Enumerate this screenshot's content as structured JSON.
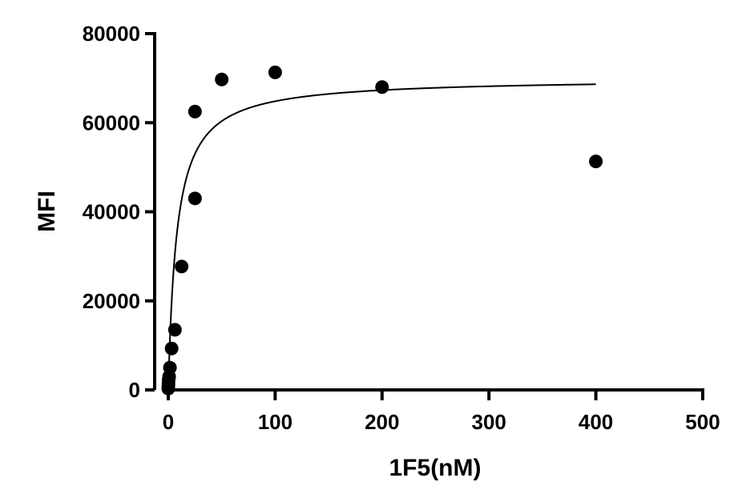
{
  "chart_data": {
    "type": "scatter",
    "xlabel": "1F5(nM)",
    "ylabel": "MFI",
    "xlim": [
      0,
      500
    ],
    "ylim": [
      0,
      80000
    ],
    "x_ticks": [
      0,
      100,
      200,
      300,
      400,
      500
    ],
    "y_ticks": [
      0,
      20000,
      40000,
      60000,
      80000
    ],
    "x_tick_labels": [
      "0",
      "100",
      "200",
      "300",
      "400",
      "500"
    ],
    "y_tick_labels": [
      "0",
      "20000",
      "40000",
      "60000",
      "80000"
    ],
    "grid": false,
    "legend": "none",
    "series": [
      {
        "type": "scatter",
        "points": [
          {
            "x": 0.05,
            "y": 300
          },
          {
            "x": 0.1,
            "y": 800
          },
          {
            "x": 0.2,
            "y": 1400
          },
          {
            "x": 0.4,
            "y": 2300
          },
          {
            "x": 0.8,
            "y": 3000
          },
          {
            "x": 1.56,
            "y": 5000
          },
          {
            "x": 3.13,
            "y": 9300
          },
          {
            "x": 6.25,
            "y": 13500
          },
          {
            "x": 12.5,
            "y": 27700
          },
          {
            "x": 25,
            "y": 43000
          },
          {
            "x": 25,
            "y": 62500
          },
          {
            "x": 50,
            "y": 69700
          },
          {
            "x": 100,
            "y": 71300
          },
          {
            "x": 200,
            "y": 68000
          },
          {
            "x": 400,
            "y": 51300
          }
        ]
      },
      {
        "type": "line",
        "curve": "one-site-binding",
        "bmax": 70000,
        "kd": 8,
        "x_range": [
          0,
          400
        ]
      }
    ]
  }
}
